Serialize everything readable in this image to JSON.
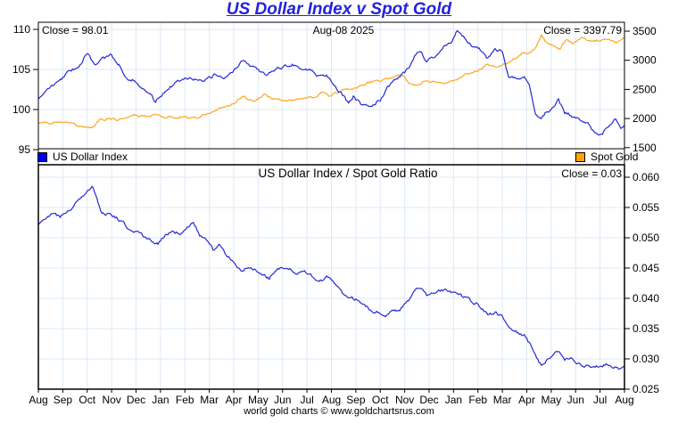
{
  "title": "US Dollar Index v Spot Gold",
  "footer": "world gold charts © www.goldchartsrus.com",
  "colors": {
    "title_blue": "#2222DD",
    "usd_line": "#2428D6",
    "usd_swatch": "#0000EE",
    "gold_line": "#FFA51E",
    "gold_swatch": "#FFA500",
    "grid": "#DDE9F6",
    "axis": "#000000",
    "background": "#FFFFFF"
  },
  "top_panel": {
    "close_left": "Close = 98.01",
    "date_label": "Aug-08  2025",
    "close_right": "Close = 3397.79",
    "legend": [
      {
        "label": "US Dollar Index",
        "color": "#0000EE"
      },
      {
        "label": "Spot Gold",
        "color": "#FFA500"
      }
    ],
    "left_axis": {
      "ticks": [
        110,
        105,
        100,
        95
      ]
    },
    "right_axis": {
      "ticks": [
        3500,
        3000,
        2500,
        2000,
        1500
      ]
    }
  },
  "bottom_panel": {
    "title": "US Dollar Index  /  Spot Gold Ratio",
    "close_right": "Close = 0.03",
    "right_axis": {
      "ticks": [
        "0.060",
        "0.055",
        "0.050",
        "0.045",
        "0.040",
        "0.035",
        "0.030",
        "0.025"
      ]
    }
  },
  "x_axis": {
    "months": [
      "Aug",
      "Sep",
      "Oct",
      "Nov",
      "Dec",
      "Jan",
      "Feb",
      "Mar",
      "Apr",
      "May",
      "Jun",
      "Jul",
      "Aug",
      "Sep",
      "Oct",
      "Nov",
      "Dec",
      "Jan",
      "Feb",
      "Mar",
      "Apr",
      "May",
      "Jun",
      "Jul",
      "Aug"
    ],
    "start": "Aug 2023",
    "end": "Aug 2025"
  },
  "chart_data": [
    {
      "type": "line",
      "title": "US Dollar Index v Spot Gold",
      "x_unit": "months since Aug-2023 (0 = Aug-2023, 24 = Aug-2025)",
      "xlim": [
        0,
        24
      ],
      "grid": true,
      "legend_position": "bottom strip inside panel",
      "series": [
        {
          "name": "US Dollar Index",
          "axis": "left",
          "ylim": [
            95,
            110
          ],
          "color": "#2428D6",
          "close": 98.01,
          "points": [
            [
              0,
              101.3
            ],
            [
              0.4,
              102.6
            ],
            [
              0.8,
              103.4
            ],
            [
              1.2,
              104.6
            ],
            [
              1.6,
              105.3
            ],
            [
              2.0,
              106.9
            ],
            [
              2.3,
              105.6
            ],
            [
              2.6,
              106.3
            ],
            [
              3.0,
              106.8
            ],
            [
              3.3,
              105.6
            ],
            [
              3.6,
              104.1
            ],
            [
              4.0,
              103.4
            ],
            [
              4.4,
              102.4
            ],
            [
              4.8,
              101.0
            ],
            [
              5.2,
              102.4
            ],
            [
              5.6,
              103.3
            ],
            [
              6.0,
              104.1
            ],
            [
              6.4,
              103.8
            ],
            [
              6.8,
              103.4
            ],
            [
              7.2,
              104.3
            ],
            [
              7.6,
              104.0
            ],
            [
              8.0,
              104.8
            ],
            [
              8.35,
              106.2
            ],
            [
              8.7,
              105.5
            ],
            [
              9.0,
              105.1
            ],
            [
              9.35,
              104.4
            ],
            [
              9.7,
              105.0
            ],
            [
              10.0,
              105.3
            ],
            [
              10.4,
              105.7
            ],
            [
              10.8,
              105.1
            ],
            [
              11.2,
              104.9
            ],
            [
              11.5,
              104.1
            ],
            [
              11.8,
              104.4
            ],
            [
              12.1,
              103.2
            ],
            [
              12.4,
              102.0
            ],
            [
              12.7,
              100.8
            ],
            [
              12.9,
              101.6
            ],
            [
              13.2,
              100.7
            ],
            [
              13.6,
              100.3
            ],
            [
              14.0,
              101.2
            ],
            [
              14.4,
              103.2
            ],
            [
              14.8,
              104.1
            ],
            [
              15.1,
              104.9
            ],
            [
              15.4,
              106.6
            ],
            [
              15.65,
              107.4
            ],
            [
              15.85,
              105.9
            ],
            [
              16.2,
              106.6
            ],
            [
              16.6,
              107.9
            ],
            [
              16.9,
              108.3
            ],
            [
              17.15,
              109.9
            ],
            [
              17.4,
              109.1
            ],
            [
              17.7,
              108.0
            ],
            [
              18.0,
              107.8
            ],
            [
              18.35,
              106.5
            ],
            [
              18.7,
              107.4
            ],
            [
              19.0,
              107.2
            ],
            [
              19.25,
              104.1
            ],
            [
              19.6,
              103.8
            ],
            [
              19.9,
              104.2
            ],
            [
              20.1,
              103.2
            ],
            [
              20.35,
              99.7
            ],
            [
              20.55,
              98.8
            ],
            [
              20.8,
              99.7
            ],
            [
              21.0,
              99.9
            ],
            [
              21.3,
              101.2
            ],
            [
              21.55,
              99.5
            ],
            [
              21.8,
              99.3
            ],
            [
              22.1,
              98.9
            ],
            [
              22.5,
              98.2
            ],
            [
              22.8,
              96.9
            ],
            [
              23.1,
              97.1
            ],
            [
              23.4,
              97.9
            ],
            [
              23.65,
              98.7
            ],
            [
              23.85,
              97.6
            ],
            [
              24,
              98.01
            ]
          ]
        },
        {
          "name": "Spot Gold",
          "axis": "right",
          "ylim": [
            1500,
            3500
          ],
          "color": "#FFA51E",
          "close": 3397.79,
          "points": [
            [
              0,
              1925
            ],
            [
              0.4,
              1912
            ],
            [
              0.8,
              1938
            ],
            [
              1.2,
              1930
            ],
            [
              1.6,
              1872
            ],
            [
              2.0,
              1838
            ],
            [
              2.2,
              1820
            ],
            [
              2.5,
              1972
            ],
            [
              2.8,
              1992
            ],
            [
              3.2,
              1978
            ],
            [
              3.6,
              2028
            ],
            [
              3.9,
              2072
            ],
            [
              4.1,
              2028
            ],
            [
              4.5,
              2048
            ],
            [
              4.8,
              2062
            ],
            [
              5.1,
              2028
            ],
            [
              5.5,
              2018
            ],
            [
              5.9,
              2032
            ],
            [
              6.2,
              1992
            ],
            [
              6.6,
              2038
            ],
            [
              7.0,
              2088
            ],
            [
              7.4,
              2178
            ],
            [
              7.8,
              2222
            ],
            [
              8.1,
              2292
            ],
            [
              8.4,
              2382
            ],
            [
              8.7,
              2308
            ],
            [
              9.0,
              2332
            ],
            [
              9.3,
              2418
            ],
            [
              9.6,
              2332
            ],
            [
              10.0,
              2322
            ],
            [
              10.4,
              2308
            ],
            [
              10.8,
              2332
            ],
            [
              11.2,
              2362
            ],
            [
              11.6,
              2442
            ],
            [
              11.9,
              2398
            ],
            [
              12.2,
              2442
            ],
            [
              12.5,
              2502
            ],
            [
              12.9,
              2512
            ],
            [
              13.3,
              2572
            ],
            [
              13.7,
              2642
            ],
            [
              14.1,
              2658
            ],
            [
              14.5,
              2712
            ],
            [
              14.9,
              2738
            ],
            [
              15.2,
              2602
            ],
            [
              15.5,
              2562
            ],
            [
              15.8,
              2652
            ],
            [
              16.2,
              2632
            ],
            [
              16.6,
              2592
            ],
            [
              16.9,
              2632
            ],
            [
              17.3,
              2712
            ],
            [
              17.7,
              2782
            ],
            [
              18.0,
              2822
            ],
            [
              18.4,
              2922
            ],
            [
              18.7,
              2892
            ],
            [
              19.0,
              2912
            ],
            [
              19.4,
              3002
            ],
            [
              19.8,
              3122
            ],
            [
              20.1,
              3122
            ],
            [
              20.4,
              3242
            ],
            [
              20.6,
              3422
            ],
            [
              20.8,
              3312
            ],
            [
              21.1,
              3232
            ],
            [
              21.35,
              3182
            ],
            [
              21.6,
              3362
            ],
            [
              21.9,
              3292
            ],
            [
              22.2,
              3388
            ],
            [
              22.5,
              3352
            ],
            [
              22.8,
              3332
            ],
            [
              23.1,
              3342
            ],
            [
              23.4,
              3352
            ],
            [
              23.7,
              3292
            ],
            [
              23.85,
              3342
            ],
            [
              24,
              3397.79
            ]
          ]
        }
      ]
    },
    {
      "type": "line",
      "title": "US Dollar Index  /  Spot Gold Ratio",
      "x_unit": "months since Aug-2023 (0 = Aug-2023, 24 = Aug-2025)",
      "xlim": [
        0,
        24
      ],
      "grid": true,
      "series": [
        {
          "name": "US Dollar Index / Spot Gold Ratio",
          "axis": "right",
          "ylim": [
            0.025,
            0.06
          ],
          "color": "#2428D6",
          "close": 0.03,
          "points": [
            [
              0,
              0.0522
            ],
            [
              0.3,
              0.0533
            ],
            [
              0.6,
              0.054
            ],
            [
              0.9,
              0.0535
            ],
            [
              1.2,
              0.0542
            ],
            [
              1.5,
              0.0556
            ],
            [
              1.8,
              0.0568
            ],
            [
              2.05,
              0.058
            ],
            [
              2.2,
              0.0587
            ],
            [
              2.4,
              0.0562
            ],
            [
              2.6,
              0.054
            ],
            [
              2.9,
              0.0537
            ],
            [
              3.2,
              0.0534
            ],
            [
              3.5,
              0.0523
            ],
            [
              3.8,
              0.051
            ],
            [
              4.1,
              0.0509
            ],
            [
              4.4,
              0.05
            ],
            [
              4.7,
              0.0494
            ],
            [
              4.9,
              0.0489
            ],
            [
              5.2,
              0.0504
            ],
            [
              5.5,
              0.0511
            ],
            [
              5.8,
              0.0506
            ],
            [
              6.1,
              0.0519
            ],
            [
              6.35,
              0.0523
            ],
            [
              6.6,
              0.0505
            ],
            [
              6.9,
              0.0495
            ],
            [
              7.15,
              0.048
            ],
            [
              7.4,
              0.049
            ],
            [
              7.7,
              0.047
            ],
            [
              8.0,
              0.0461
            ],
            [
              8.3,
              0.0445
            ],
            [
              8.6,
              0.0452
            ],
            [
              8.9,
              0.0447
            ],
            [
              9.2,
              0.044
            ],
            [
              9.45,
              0.0433
            ],
            [
              9.7,
              0.0446
            ],
            [
              10.0,
              0.0452
            ],
            [
              10.3,
              0.0448
            ],
            [
              10.6,
              0.0441
            ],
            [
              10.9,
              0.0444
            ],
            [
              11.2,
              0.0437
            ],
            [
              11.5,
              0.0427
            ],
            [
              11.8,
              0.0434
            ],
            [
              12.1,
              0.0425
            ],
            [
              12.4,
              0.041
            ],
            [
              12.7,
              0.0402
            ],
            [
              13.0,
              0.0398
            ],
            [
              13.3,
              0.0391
            ],
            [
              13.6,
              0.0381
            ],
            [
              13.9,
              0.0377
            ],
            [
              14.2,
              0.0371
            ],
            [
              14.5,
              0.0377
            ],
            [
              14.8,
              0.0381
            ],
            [
              15.1,
              0.0394
            ],
            [
              15.4,
              0.0411
            ],
            [
              15.65,
              0.0417
            ],
            [
              15.9,
              0.0405
            ],
            [
              16.2,
              0.0409
            ],
            [
              16.5,
              0.0413
            ],
            [
              16.8,
              0.0412
            ],
            [
              17.15,
              0.0407
            ],
            [
              17.5,
              0.0401
            ],
            [
              17.8,
              0.0394
            ],
            [
              18.1,
              0.0386
            ],
            [
              18.4,
              0.0372
            ],
            [
              18.7,
              0.0378
            ],
            [
              19.0,
              0.037
            ],
            [
              19.3,
              0.035
            ],
            [
              19.6,
              0.0344
            ],
            [
              19.9,
              0.0339
            ],
            [
              20.15,
              0.0323
            ],
            [
              20.4,
              0.0303
            ],
            [
              20.6,
              0.0289
            ],
            [
              20.85,
              0.03
            ],
            [
              21.1,
              0.0308
            ],
            [
              21.3,
              0.0313
            ],
            [
              21.55,
              0.0297
            ],
            [
              21.8,
              0.03
            ],
            [
              22.1,
              0.0293
            ],
            [
              22.4,
              0.0288
            ],
            [
              22.7,
              0.0286
            ],
            [
              23.0,
              0.0289
            ],
            [
              23.3,
              0.0291
            ],
            [
              23.6,
              0.0286
            ],
            [
              23.8,
              0.0283
            ],
            [
              24,
              0.0288
            ]
          ]
        }
      ]
    }
  ]
}
